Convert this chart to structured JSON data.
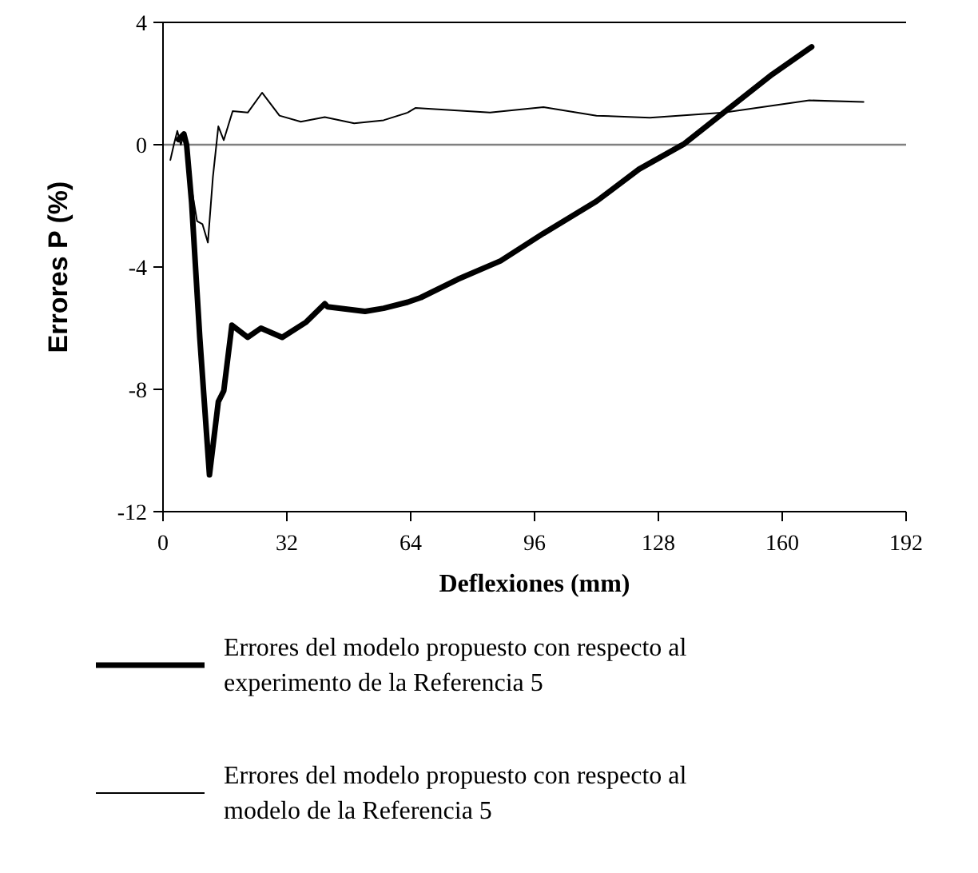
{
  "chart_data": {
    "type": "line",
    "xlabel": "Deflexiones (mm)",
    "ylabel": "Errores P (%)",
    "xlim": [
      0,
      192
    ],
    "xticks": [
      0,
      32,
      64,
      96,
      128,
      160,
      192
    ],
    "ylim": [
      -12,
      4
    ],
    "yticks": [
      -12,
      -8,
      -4,
      0,
      4
    ],
    "ref_lines": [
      {
        "axis": "y",
        "value": 0,
        "color": "#808080"
      }
    ],
    "legend": "bottom",
    "grid": false,
    "marker": "none",
    "line_style": "solid",
    "series": [
      {
        "name": "Errores del modelo propuesto con respecto al experimento de la Referencia 5",
        "color": "#000000",
        "x": [
          4.0,
          5.4,
          6.1,
          7.4,
          9.5,
          12.0,
          14.3,
          15.7,
          17.8,
          21.9,
          25.3,
          30.8,
          37.0,
          41.8,
          42.5,
          52.2,
          57.0,
          63.2,
          66.6,
          76.2,
          87.2,
          98.3,
          112.0,
          123.0,
          134.7,
          146.4,
          157.4,
          167.6
        ],
        "values": [
          0.17,
          0.35,
          0.0,
          -1.9,
          -6.3,
          -10.8,
          -8.4,
          -8.05,
          -5.9,
          -6.3,
          -6.0,
          -6.3,
          -5.8,
          -5.2,
          -5.3,
          -5.45,
          -5.35,
          -5.15,
          -5.0,
          -4.4,
          -3.8,
          -2.9,
          -1.85,
          -0.8,
          0.03,
          1.2,
          2.3,
          3.2
        ]
      },
      {
        "name": "Errores del modelo propuesto con respecto al modelo de la Referencia 5",
        "color": "#000000",
        "x": [
          1.9,
          2.8,
          3.7,
          4.6,
          5.5,
          6.7,
          8.8,
          10.2,
          11.6,
          12.9,
          14.3,
          15.7,
          18.0,
          21.9,
          25.6,
          30.1,
          35.6,
          41.8,
          49.4,
          57.0,
          63.2,
          65.2,
          84.5,
          98.3,
          112.0,
          125.8,
          145.0,
          167.0,
          181.0
        ],
        "values": [
          -0.5,
          0.0,
          0.45,
          0.0,
          0.35,
          -0.9,
          -2.5,
          -2.6,
          -3.2,
          -1.05,
          0.6,
          0.15,
          1.1,
          1.05,
          1.7,
          0.95,
          0.75,
          0.9,
          0.7,
          0.8,
          1.05,
          1.2,
          1.05,
          1.23,
          0.95,
          0.88,
          1.05,
          1.45,
          1.4
        ]
      }
    ]
  }
}
